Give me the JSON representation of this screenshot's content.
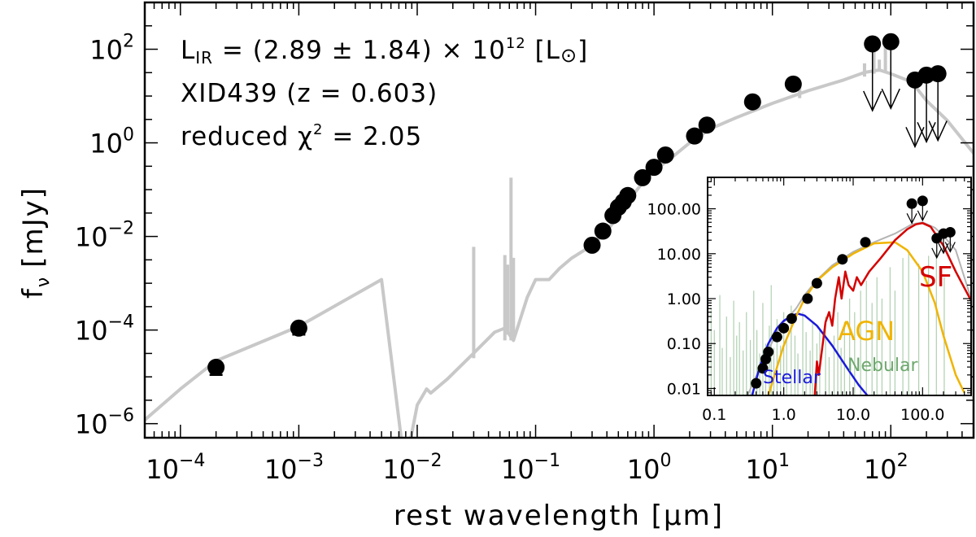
{
  "chart_data": [
    {
      "type": "scatter",
      "title": "",
      "xlabel": "rest wavelength [μm]",
      "ylabel": "f",
      "ylabel_sub": "ν",
      "ylabel_unit": "[mJy]",
      "xscale": "log",
      "yscale": "log",
      "xlim": [
        5e-05,
        500
      ],
      "ylim": [
        5e-07,
        1000
      ],
      "x_ticks": [
        {
          "value": 0.0001,
          "base": "10",
          "exp": "−4"
        },
        {
          "value": 0.001,
          "base": "10",
          "exp": "−3"
        },
        {
          "value": 0.01,
          "base": "10",
          "exp": "−2"
        },
        {
          "value": 0.1,
          "base": "10",
          "exp": "−1"
        },
        {
          "value": 1,
          "base": "10",
          "exp": "0"
        },
        {
          "value": 10,
          "base": "10",
          "exp": "1"
        },
        {
          "value": 100,
          "base": "10",
          "exp": "2"
        }
      ],
      "y_ticks": [
        {
          "value": 1e-06,
          "base": "10",
          "exp": "−6"
        },
        {
          "value": 0.0001,
          "base": "10",
          "exp": "−4"
        },
        {
          "value": 0.01,
          "base": "10",
          "exp": "−2"
        },
        {
          "value": 1,
          "base": "10",
          "exp": "0"
        },
        {
          "value": 100,
          "base": "10",
          "exp": "2"
        }
      ],
      "annotations": {
        "lir_prefix": "L",
        "lir_sub": "IR",
        "lir_value": " = (2.89 ± 1.84) × 10",
        "lir_exp": "12",
        "lir_unit_open": " [L",
        "lir_unit_symbol": "⊙",
        "lir_unit_close": "]",
        "source": "XID439 (z = 0.603)",
        "chi_prefix": "reduced χ",
        "chi_exp": "2",
        "chi_value": " = 2.05"
      },
      "model_color": "#c8c8c8",
      "model_sed": [
        [
          5e-05,
          1.2e-06
        ],
        [
          0.0001,
          5.5e-06
        ],
        [
          0.0002,
          2.2e-05
        ],
        [
          0.001,
          0.00012
        ],
        [
          0.005,
          0.0012
        ],
        [
          0.0075,
          3e-07
        ],
        [
          0.0085,
          3e-07
        ],
        [
          0.01,
          2.5e-06
        ],
        [
          0.012,
          5.5e-06
        ],
        [
          0.013,
          4.5e-06
        ],
        [
          0.018,
          9e-06
        ],
        [
          0.03,
          3.2e-05
        ],
        [
          0.045,
          9e-05
        ],
        [
          0.055,
          0.00011
        ],
        [
          0.065,
          6e-05
        ],
        [
          0.085,
          0.0005
        ],
        [
          0.1,
          0.0012
        ],
        [
          0.13,
          0.0012
        ],
        [
          0.16,
          0.0021
        ],
        [
          0.2,
          0.0034
        ],
        [
          0.3,
          0.0065
        ],
        [
          0.4,
          0.013
        ],
        [
          0.5,
          0.028
        ],
        [
          0.6,
          0.055
        ],
        [
          0.8,
          0.14
        ],
        [
          1.0,
          0.25
        ],
        [
          1.5,
          0.55
        ],
        [
          2.0,
          1.0
        ],
        [
          3.0,
          2.0
        ],
        [
          5.0,
          3.5
        ],
        [
          10,
          7
        ],
        [
          20,
          13
        ],
        [
          40,
          22
        ],
        [
          60,
          32
        ],
        [
          80,
          36
        ],
        [
          100,
          30
        ],
        [
          150,
          20
        ],
        [
          200,
          8
        ],
        [
          300,
          3
        ],
        [
          500,
          0.6
        ]
      ],
      "model_lines": [
        [
          0.03,
          2.5e-05,
          0.006
        ],
        [
          0.055,
          6e-05,
          0.004
        ],
        [
          0.058,
          8e-05,
          0.0025
        ],
        [
          0.062,
          6e-05,
          0.18
        ],
        [
          0.065,
          6e-05,
          0.0035
        ],
        [
          17,
          9,
          16
        ],
        [
          60,
          26,
          50
        ],
        [
          72,
          30,
          120
        ],
        [
          80,
          33,
          60
        ],
        [
          90,
          34,
          130
        ]
      ],
      "photometry": [
        {
          "x": 0.0002,
          "y": 1.6e-05,
          "yerr_lo": 1.1e-05,
          "yerr_hi": 2.2e-05
        },
        {
          "x": 0.001,
          "y": 0.00011,
          "yerr_lo": 8e-05,
          "yerr_hi": 0.00015
        },
        {
          "x": 0.3,
          "y": 0.0065
        },
        {
          "x": 0.37,
          "y": 0.013
        },
        {
          "x": 0.45,
          "y": 0.028
        },
        {
          "x": 0.5,
          "y": 0.042
        },
        {
          "x": 0.55,
          "y": 0.055
        },
        {
          "x": 0.6,
          "y": 0.075
        },
        {
          "x": 0.8,
          "y": 0.18
        },
        {
          "x": 1.0,
          "y": 0.3
        },
        {
          "x": 1.25,
          "y": 0.55
        },
        {
          "x": 2.2,
          "y": 1.4
        },
        {
          "x": 2.8,
          "y": 2.4
        },
        {
          "x": 6.8,
          "y": 7.5
        },
        {
          "x": 15,
          "y": 18
        }
      ],
      "upper_limits": [
        {
          "x": 70,
          "y": 130
        },
        {
          "x": 100,
          "y": 145
        },
        {
          "x": 160,
          "y": 22
        },
        {
          "x": 200,
          "y": 28
        },
        {
          "x": 250,
          "y": 30
        }
      ]
    },
    {
      "type": "line",
      "title": "",
      "xscale": "log",
      "yscale": "log",
      "xlim": [
        0.08,
        500
      ],
      "ylim": [
        0.007,
        500
      ],
      "x_ticks": [
        {
          "value": 0.1,
          "label": "0.1"
        },
        {
          "value": 1,
          "label": "1.0"
        },
        {
          "value": 10,
          "label": "10.0"
        },
        {
          "value": 100,
          "label": "100.0"
        }
      ],
      "y_ticks": [
        {
          "value": 0.01,
          "label": "0.01"
        },
        {
          "value": 0.1,
          "label": "0.10"
        },
        {
          "value": 1,
          "label": "1.00"
        },
        {
          "value": 10,
          "label": "10.00"
        },
        {
          "value": 100,
          "label": "100.00"
        }
      ],
      "series": [
        {
          "name": "Stellar",
          "color": "#1a1adb",
          "points": [
            [
              0.35,
              0.007
            ],
            [
              0.45,
              0.03
            ],
            [
              0.6,
              0.1
            ],
            [
              0.8,
              0.22
            ],
            [
              1.0,
              0.32
            ],
            [
              1.3,
              0.42
            ],
            [
              1.6,
              0.46
            ],
            [
              2.0,
              0.42
            ],
            [
              3.0,
              0.25
            ],
            [
              5.0,
              0.09
            ],
            [
              8.0,
              0.03
            ],
            [
              12,
              0.012
            ],
            [
              16,
              0.007
            ]
          ]
        },
        {
          "name": "AGN",
          "color": "#f0b400",
          "points": [
            [
              0.6,
              0.007
            ],
            [
              0.8,
              0.03
            ],
            [
              1.0,
              0.09
            ],
            [
              1.5,
              0.4
            ],
            [
              2.0,
              1.0
            ],
            [
              3.0,
              2.5
            ],
            [
              5.0,
              5.0
            ],
            [
              10,
              10
            ],
            [
              20,
              17
            ],
            [
              40,
              18
            ],
            [
              60,
              12
            ],
            [
              100,
              4
            ],
            [
              150,
              0.8
            ],
            [
              200,
              0.15
            ],
            [
              300,
              0.02
            ],
            [
              400,
              0.008
            ]
          ]
        },
        {
          "name": "SF",
          "color": "#d40000",
          "points": [
            [
              2.8,
              0.007
            ],
            [
              3.0,
              0.04
            ],
            [
              3.2,
              0.02
            ],
            [
              4.0,
              0.3
            ],
            [
              4.5,
              0.5
            ],
            [
              5.0,
              0.25
            ],
            [
              5.5,
              1.0
            ],
            [
              6.2,
              3.0
            ],
            [
              6.8,
              1.0
            ],
            [
              7.7,
              4.0
            ],
            [
              8.6,
              2.0
            ],
            [
              10,
              1.5
            ],
            [
              11.3,
              3.0
            ],
            [
              13,
              2.0
            ],
            [
              17,
              4.0
            ],
            [
              25,
              8.0
            ],
            [
              40,
              20
            ],
            [
              60,
              35
            ],
            [
              80,
              45
            ],
            [
              100,
              48
            ],
            [
              130,
              40
            ],
            [
              200,
              15
            ],
            [
              300,
              4
            ],
            [
              500,
              0.9
            ]
          ]
        }
      ],
      "labels": {
        "stellar": "Stellar",
        "agn": "AGN",
        "sf": "SF",
        "nebular": "Nebular"
      },
      "nebular_color": "#6ea86e",
      "nebular_lines": [
        [
          0.09,
          0.6
        ],
        [
          0.1,
          0.2
        ],
        [
          0.12,
          1.2
        ],
        [
          0.13,
          0.08
        ],
        [
          0.15,
          0.4
        ],
        [
          0.17,
          0.05
        ],
        [
          0.19,
          0.9
        ],
        [
          0.21,
          0.15
        ],
        [
          0.23,
          0.3
        ],
        [
          0.26,
          0.07
        ],
        [
          0.29,
          0.5
        ],
        [
          0.33,
          0.12
        ],
        [
          0.37,
          1.5
        ],
        [
          0.41,
          0.2
        ],
        [
          0.45,
          0.06
        ],
        [
          0.5,
          0.8
        ],
        [
          0.55,
          0.1
        ],
        [
          0.62,
          0.25
        ],
        [
          0.66,
          2.0
        ],
        [
          0.72,
          0.08
        ],
        [
          0.8,
          0.35
        ],
        [
          0.9,
          0.09
        ],
        [
          1.0,
          0.5
        ],
        [
          1.1,
          0.12
        ],
        [
          1.28,
          0.7
        ],
        [
          1.45,
          0.15
        ],
        [
          1.6,
          0.06
        ],
        [
          1.88,
          0.5
        ],
        [
          2.1,
          0.18
        ],
        [
          2.4,
          0.07
        ],
        [
          2.6,
          0.3
        ],
        [
          3.0,
          0.1
        ],
        [
          3.3,
          0.2
        ],
        [
          4.0,
          0.4
        ],
        [
          4.5,
          0.05
        ],
        [
          5.3,
          0.15
        ],
        [
          6.0,
          0.5
        ],
        [
          6.7,
          0.08
        ],
        [
          7.5,
          0.3
        ],
        [
          8.9,
          1.0
        ],
        [
          10.5,
          0.5
        ],
        [
          12.8,
          1.5
        ],
        [
          15.5,
          2.5
        ],
        [
          18.7,
          0.8
        ],
        [
          22,
          3.0
        ],
        [
          26,
          1.0
        ],
        [
          34,
          5.0
        ],
        [
          40,
          1.5
        ],
        [
          52,
          8.0
        ],
        [
          63,
          10.0
        ],
        [
          88,
          6.0
        ],
        [
          122,
          9.0
        ],
        [
          158,
          12.0
        ],
        [
          205,
          3.0
        ]
      ],
      "photometry": [
        {
          "x": 0.4,
          "y": 0.013
        },
        {
          "x": 0.5,
          "y": 0.028
        },
        {
          "x": 0.55,
          "y": 0.045
        },
        {
          "x": 0.6,
          "y": 0.065
        },
        {
          "x": 0.8,
          "y": 0.14
        },
        {
          "x": 1.0,
          "y": 0.22
        },
        {
          "x": 1.3,
          "y": 0.36
        },
        {
          "x": 2.2,
          "y": 1.0
        },
        {
          "x": 3.0,
          "y": 2.2
        },
        {
          "x": 7.0,
          "y": 7.5
        },
        {
          "x": 15,
          "y": 18
        }
      ],
      "upper_limits": [
        {
          "x": 70,
          "y": 130
        },
        {
          "x": 100,
          "y": 150
        },
        {
          "x": 160,
          "y": 22
        },
        {
          "x": 200,
          "y": 28
        },
        {
          "x": 250,
          "y": 30
        }
      ],
      "total_model": [
        [
          0.3,
          0.007
        ],
        [
          0.5,
          0.04
        ],
        [
          0.8,
          0.18
        ],
        [
          1.0,
          0.3
        ],
        [
          1.5,
          0.6
        ],
        [
          2.0,
          1.2
        ],
        [
          3.0,
          2.6
        ],
        [
          5.0,
          5.5
        ],
        [
          10,
          11
        ],
        [
          20,
          18
        ],
        [
          40,
          28
        ],
        [
          70,
          45
        ],
        [
          100,
          50
        ],
        [
          150,
          38
        ],
        [
          200,
          25
        ],
        [
          300,
          12
        ],
        [
          500,
          1.0
        ]
      ]
    }
  ]
}
